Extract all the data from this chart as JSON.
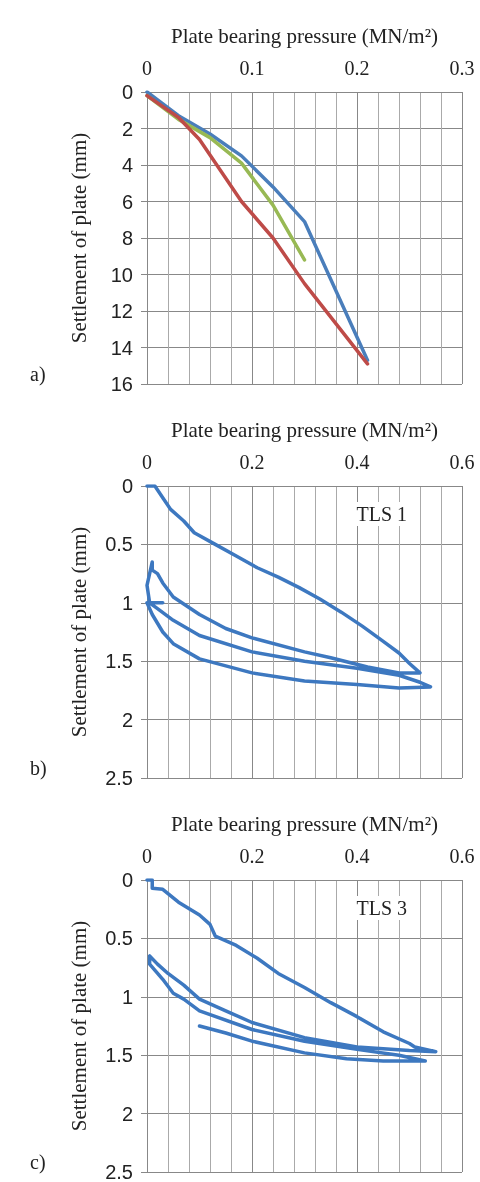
{
  "chart_data": [
    {
      "type": "line",
      "xlabel": "Plate bearing pressure (MN/m²)",
      "ylabel": "Settlement of plate (mm)",
      "annotations": [
        "a)"
      ],
      "xlim": [
        0,
        0.3
      ],
      "xticks": [
        0,
        0.1,
        0.2,
        0.3
      ],
      "ylim": [
        16,
        0
      ],
      "yticks": [
        0,
        2,
        4,
        6,
        8,
        10,
        12,
        14,
        16
      ],
      "grid": true,
      "marker": "none",
      "line_style": "solid",
      "series": [
        {
          "color": "#4a7ebb",
          "x": [
            0,
            0.03,
            0.06,
            0.09,
            0.12,
            0.15,
            0.21
          ],
          "values": [
            0,
            1.3,
            2.3,
            3.5,
            5.2,
            7.1,
            14.7
          ]
        },
        {
          "color": "#98b954",
          "x": [
            0,
            0.03,
            0.06,
            0.09,
            0.12,
            0.15
          ],
          "values": [
            0.2,
            1.5,
            2.5,
            3.9,
            6.2,
            9.2
          ]
        },
        {
          "color": "#be4b48",
          "x": [
            0,
            0.03,
            0.05,
            0.09,
            0.12,
            0.15,
            0.21
          ],
          "values": [
            0.2,
            1.4,
            2.6,
            6,
            8,
            10.5,
            14.9
          ]
        }
      ]
    },
    {
      "type": "line",
      "xlabel": "Plate bearing pressure (MN/m²)",
      "ylabel": "Settlement of plate (mm)",
      "annotations": [
        "TLS 1",
        "b)"
      ],
      "xlim": [
        0,
        0.6
      ],
      "xticks": [
        0,
        0.2,
        0.4,
        0.6
      ],
      "ylim": [
        2.5,
        0
      ],
      "yticks": [
        0,
        0.5,
        1,
        1.5,
        2,
        2.5
      ],
      "grid": true,
      "marker": "none",
      "line_style": "solid",
      "series": [
        {
          "color": "#3d78c0",
          "x": [
            0,
            0.015,
            0.03,
            0.045,
            0.07,
            0.09,
            0.13,
            0.17,
            0.21,
            0.25,
            0.29,
            0.33,
            0.37,
            0.41,
            0.45,
            0.48,
            0.5,
            0.52,
            0.48,
            0.42,
            0.35,
            0.3,
            0.2,
            0.15,
            0.1,
            0.05,
            0.03,
            0.02,
            0.01,
            0.01,
            0.0,
            0.005,
            0.02,
            0.05,
            0.1,
            0.2,
            0.3,
            0.4,
            0.48,
            0.52,
            0.54,
            0.48,
            0.4,
            0.3,
            0.2,
            0.1,
            0.05,
            0.03,
            0.01,
            0.0,
            0.015,
            0.03
          ],
          "values": [
            0,
            0,
            0.1,
            0.2,
            0.3,
            0.4,
            0.5,
            0.6,
            0.7,
            0.78,
            0.87,
            0.97,
            1.08,
            1.2,
            1.33,
            1.43,
            1.52,
            1.6,
            1.6,
            1.55,
            1.47,
            1.42,
            1.3,
            1.22,
            1.1,
            0.95,
            0.83,
            0.75,
            0.72,
            0.65,
            0.85,
            1,
            1.05,
            1.15,
            1.28,
            1.42,
            1.5,
            1.56,
            1.62,
            1.68,
            1.72,
            1.73,
            1.7,
            1.67,
            1.6,
            1.48,
            1.35,
            1.25,
            1.1,
            1,
            1,
            1
          ]
        }
      ]
    },
    {
      "type": "line",
      "xlabel": "Plate bearing pressure (MN/m²)",
      "ylabel": "Settlement of plate (mm)",
      "annotations": [
        "TLS 3",
        "c)"
      ],
      "xlim": [
        0,
        0.6
      ],
      "xticks": [
        0,
        0.2,
        0.4,
        0.6
      ],
      "ylim": [
        2.5,
        0
      ],
      "yticks": [
        0,
        0.5,
        1,
        1.5,
        2,
        2.5
      ],
      "grid": true,
      "marker": "none",
      "line_style": "solid",
      "series": [
        {
          "color": "#3d78c0",
          "x": [
            0,
            0.01,
            0.01,
            0.03,
            0.06,
            0.1,
            0.12,
            0.13,
            0.17,
            0.21,
            0.25,
            0.3,
            0.35,
            0.4,
            0.45,
            0.5,
            0.51,
            0.55,
            0.5,
            0.4,
            0.3,
            0.2,
            0.15,
            0.1,
            0.07,
            0.04,
            0.02,
            0.005,
            0.005,
            0.03,
            0.05,
            0.07,
            0.1,
            0.2,
            0.3,
            0.4,
            0.48,
            0.53,
            0.45,
            0.38,
            0.3,
            0.2,
            0.15,
            0.1
          ],
          "values": [
            0,
            0,
            0.07,
            0.08,
            0.19,
            0.3,
            0.38,
            0.48,
            0.56,
            0.67,
            0.8,
            0.92,
            1.05,
            1.17,
            1.3,
            1.4,
            1.43,
            1.47,
            1.46,
            1.43,
            1.35,
            1.22,
            1.12,
            1.02,
            0.9,
            0.8,
            0.72,
            0.65,
            0.72,
            0.85,
            0.97,
            1.02,
            1.12,
            1.28,
            1.38,
            1.45,
            1.5,
            1.55,
            1.55,
            1.53,
            1.48,
            1.38,
            1.31,
            1.25
          ]
        }
      ]
    }
  ]
}
